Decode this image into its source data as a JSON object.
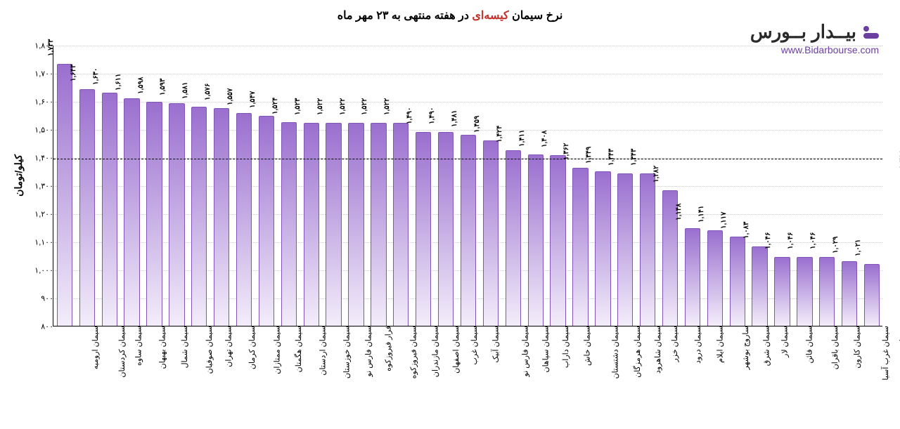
{
  "title_prefix": "نرخ سیمان ",
  "title_accent": "کیسه‌ای",
  "title_suffix": " در هفته منتهی به ۲۳ مهر ماه",
  "logo_fa": "بیــدار بــورس",
  "logo_url": "www.Bidarbourse.com",
  "y_axis_label": "کیلو/تومان",
  "reference_value": 1398,
  "reference_label": "۱,۳۹۸",
  "chart": {
    "type": "bar",
    "ymin": 800,
    "ymax": 1800,
    "ytick_step": 100,
    "yticks": [
      {
        "v": 800,
        "label": "۸۰۰"
      },
      {
        "v": 900,
        "label": "۹۰۰"
      },
      {
        "v": 1000,
        "label": "۱,۰۰۰"
      },
      {
        "v": 1100,
        "label": "۱,۱۰۰"
      },
      {
        "v": 1200,
        "label": "۱,۲۰۰"
      },
      {
        "v": 1300,
        "label": "۱,۳۰۰"
      },
      {
        "v": 1400,
        "label": "۱,۴۰۰"
      },
      {
        "v": 1500,
        "label": "۱,۵۰۰"
      },
      {
        "v": 1600,
        "label": "۱,۶۰۰"
      },
      {
        "v": 1700,
        "label": "۱,۷۰۰"
      },
      {
        "v": 1800,
        "label": "۱,۸۰۰"
      }
    ],
    "bar_top_color": "#9a6fcf",
    "bar_bottom_color": "#f3edfa",
    "bar_border_color": "#8455b8",
    "background_color": "#ffffff",
    "grid_color": "#c8c8c8",
    "bar_width_ratio": 0.7,
    "title_fontsize": 16,
    "label_fontsize": 11,
    "bars": [
      {
        "name": "سیمان ارومیه",
        "value": 1733,
        "vlabel": "۱,۷۳۳"
      },
      {
        "name": "سیمان کردستان",
        "value": 1643,
        "vlabel": "۱,۶۴۳"
      },
      {
        "name": "سیمان ساوه",
        "value": 1630,
        "vlabel": "۱,۶۳۰"
      },
      {
        "name": "سیمان بهبهان",
        "value": 1611,
        "vlabel": "۱,۶۱۱"
      },
      {
        "name": "سیمان شمال",
        "value": 1598,
        "vlabel": "۱,۵۹۸"
      },
      {
        "name": "سیمان صوفیان",
        "value": 1593,
        "vlabel": "۱,۵۹۳"
      },
      {
        "name": "سیمان تهران",
        "value": 1581,
        "vlabel": "۱,۵۸۱"
      },
      {
        "name": "سیمان کرمان",
        "value": 1576,
        "vlabel": "۱,۵۷۶"
      },
      {
        "name": "سیمان ممتازان",
        "value": 1557,
        "vlabel": "۱,۵۵۷"
      },
      {
        "name": "سیمان هگمتان",
        "value": 1547,
        "vlabel": "۱,۵۴۷"
      },
      {
        "name": "سیمان اردستان",
        "value": 1524,
        "vlabel": "۱,۵۲۴"
      },
      {
        "name": "سیمان خوزستان",
        "value": 1523,
        "vlabel": "۱,۵۲۳"
      },
      {
        "name": "سیمان فارس نو",
        "value": 1522,
        "vlabel": "۱,۵۲۲"
      },
      {
        "name": "فرار فیروزکوه",
        "value": 1522,
        "vlabel": "۱,۵۲۲"
      },
      {
        "name": "سیمان فیروزکوه",
        "value": 1522,
        "vlabel": "۱,۵۲۲"
      },
      {
        "name": "سیمان مازندران",
        "value": 1522,
        "vlabel": "۱,۵۲۲"
      },
      {
        "name": "سیمان اصفهان",
        "value": 1490,
        "vlabel": "۱,۴۹۰"
      },
      {
        "name": "سیمان غرب",
        "value": 1490,
        "vlabel": "۱,۴۹۰"
      },
      {
        "name": "سیمان آبیک",
        "value": 1481,
        "vlabel": "۱,۴۸۱"
      },
      {
        "name": "سیمان فارس نو",
        "value": 1459,
        "vlabel": "۱,۴۵۹"
      },
      {
        "name": "سیمان سپاهان",
        "value": 1424,
        "vlabel": "۱,۴۲۴"
      },
      {
        "name": "سیمان داراب",
        "value": 1411,
        "vlabel": "۱,۴۱۱"
      },
      {
        "name": "سیمان خاش",
        "value": 1408,
        "vlabel": "۱,۴۰۸"
      },
      {
        "name": "سیمان دشتستان",
        "value": 1362,
        "vlabel": "۱,۳۶۲"
      },
      {
        "name": "سیمان هرمزگان",
        "value": 1349,
        "vlabel": "۱,۳۴۹"
      },
      {
        "name": "سیمان شاهرود",
        "value": 1343,
        "vlabel": "۱,۳۴۳"
      },
      {
        "name": "سیمان خزر",
        "value": 1343,
        "vlabel": "۱,۳۴۳"
      },
      {
        "name": "سیمان درود",
        "value": 1282,
        "vlabel": "۱,۲۸۲"
      },
      {
        "name": "سیمان ایلام",
        "value": 1148,
        "vlabel": "۱,۱۴۸"
      },
      {
        "name": "ساروج بوشهر",
        "value": 1141,
        "vlabel": "۱,۱۴۱"
      },
      {
        "name": "سیمان شرق",
        "value": 1117,
        "vlabel": "۱,۱۱۷"
      },
      {
        "name": "سیمان لار",
        "value": 1083,
        "vlabel": "۱,۰۸۳"
      },
      {
        "name": "سیمان قائن",
        "value": 1046,
        "vlabel": "۱,۰۴۶"
      },
      {
        "name": "سیمان باقران",
        "value": 1046,
        "vlabel": "۱,۰۴۶"
      },
      {
        "name": "سیمان کارون",
        "value": 1046,
        "vlabel": "۱,۰۴۶"
      },
      {
        "name": "سیمان غرب آسیا",
        "value": 1029,
        "vlabel": "۱,۰۲۹"
      },
      {
        "name": "سیمان بجنورد",
        "value": 1021,
        "vlabel": "۱,۰۲۱"
      }
    ]
  }
}
